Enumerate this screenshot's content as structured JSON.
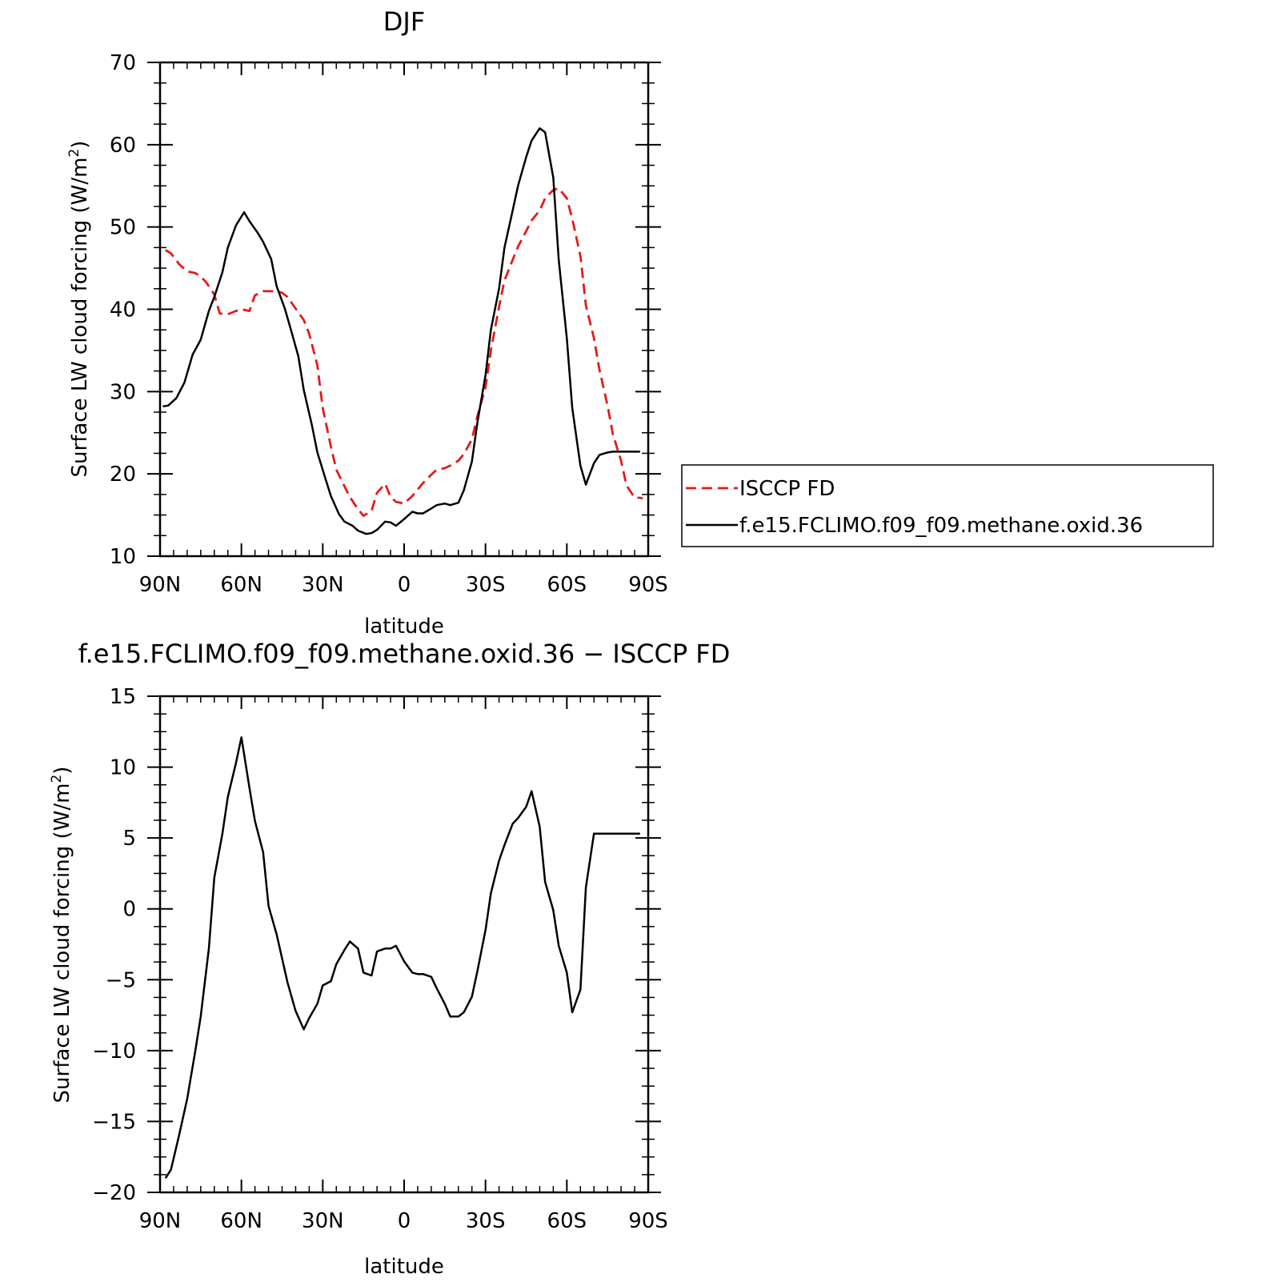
{
  "chart_data": [
    {
      "type": "line",
      "title": "DJF",
      "xlabel": "latitude",
      "ylabel": "Surface LW cloud forcing (W/m",
      "ylabel_sup": "2",
      "ylabel_close": ")",
      "xlim": [
        90,
        -90
      ],
      "ylim": [
        10,
        70
      ],
      "xticks": [
        90,
        60,
        30,
        0,
        -30,
        -60,
        -90
      ],
      "xtick_labels": [
        "90N",
        "60N",
        "30N",
        "0",
        "30S",
        "60S",
        "90S"
      ],
      "yticks": [
        10,
        20,
        30,
        40,
        50,
        60,
        70
      ],
      "ytick_labels": [
        "10",
        "20",
        "30",
        "40",
        "50",
        "60",
        "70"
      ],
      "grid": false,
      "legend_position": "right",
      "series": [
        {
          "name": "ISCCP FD",
          "color": "#e41a1c",
          "dash": "dashed",
          "x": [
            88,
            86,
            83,
            80,
            77,
            75,
            73,
            70,
            68,
            65,
            62,
            60,
            57,
            55,
            52,
            50,
            47,
            45,
            43,
            40,
            37,
            35,
            32,
            30,
            27,
            25,
            22,
            20,
            17,
            15,
            12,
            10,
            7,
            5,
            3,
            0,
            -3,
            -5,
            -7,
            -10,
            -12,
            -15,
            -17,
            -20,
            -22,
            -25,
            -27,
            -30,
            -32,
            -35,
            -37,
            -40,
            -42,
            -45,
            -47,
            -50,
            -52,
            -55,
            -57,
            -60,
            -62,
            -65,
            -67,
            -70,
            -72,
            -75,
            -77,
            -80,
            -82,
            -85,
            -87,
            -88
          ],
          "y": [
            47.2,
            46.8,
            45.5,
            44.6,
            44.4,
            44.0,
            43.3,
            41.8,
            39.5,
            39.4,
            39.8,
            40.0,
            39.8,
            41.7,
            42.2,
            42.2,
            42.2,
            42.0,
            41.5,
            40.1,
            38.7,
            37.0,
            33.2,
            28.0,
            23.3,
            20.5,
            18.5,
            17.2,
            15.7,
            14.9,
            15.5,
            17.7,
            18.8,
            17.2,
            16.6,
            16.4,
            17.3,
            18.1,
            18.9,
            19.9,
            20.5,
            20.7,
            21.0,
            21.6,
            22.4,
            24.2,
            27.0,
            30.5,
            35.0,
            40.3,
            43.5,
            46.0,
            47.6,
            49.5,
            50.8,
            52.0,
            53.5,
            54.5,
            54.7,
            53.5,
            51.0,
            46.5,
            40.5,
            36.5,
            32.7,
            28.3,
            24.8,
            21.6,
            18.6,
            17.1,
            17.1,
            17.0
          ]
        },
        {
          "name": "f.e15.FCLIMO.f09_f09.methane.oxid.36",
          "color": "#000000",
          "dash": "solid",
          "x": [
            89,
            87,
            84,
            81,
            78,
            75,
            72,
            70,
            67,
            65,
            62,
            59,
            57,
            54,
            52,
            49,
            47,
            44,
            42,
            39,
            37,
            34,
            32,
            29,
            27,
            24,
            22,
            19,
            17,
            14,
            12,
            10,
            7,
            5,
            3,
            0,
            -3,
            -5,
            -7,
            -10,
            -12,
            -15,
            -17,
            -20,
            -22,
            -25,
            -27,
            -30,
            -32,
            -35,
            -37,
            -40,
            -42,
            -45,
            -47,
            -50,
            -52,
            -55,
            -57,
            -60,
            -62,
            -65,
            -67,
            -70,
            -72,
            -75,
            -77,
            -80,
            -82,
            -85,
            -87
          ],
          "y": [
            28.2,
            28.3,
            29.2,
            31.1,
            34.5,
            36.3,
            39.8,
            41.5,
            44.5,
            47.5,
            50.2,
            51.8,
            50.7,
            49.3,
            48.2,
            46.1,
            42.8,
            40.1,
            37.8,
            34.3,
            30.2,
            25.9,
            22.6,
            19.4,
            17.3,
            15.1,
            14.2,
            13.7,
            13.1,
            12.7,
            12.8,
            13.2,
            14.2,
            14.1,
            13.7,
            14.5,
            15.4,
            15.2,
            15.2,
            15.8,
            16.2,
            16.4,
            16.2,
            16.5,
            18.0,
            21.5,
            26.2,
            32.0,
            37.5,
            42.5,
            47.5,
            52.0,
            55.0,
            58.5,
            60.5,
            62.0,
            61.5,
            56.0,
            46.0,
            36.5,
            28.0,
            21.0,
            18.7,
            21.3,
            22.3,
            22.6,
            22.7,
            22.7,
            22.7,
            22.7,
            22.7
          ]
        }
      ]
    },
    {
      "type": "line",
      "title": "f.e15.FCLIMO.f09_f09.methane.oxid.36 − ISCCP FD",
      "xlabel": "latitude",
      "ylabel": "Surface LW cloud forcing (W/m",
      "ylabel_sup": "2",
      "ylabel_close": ")",
      "xlim": [
        90,
        -90
      ],
      "ylim": [
        -20,
        15
      ],
      "xticks": [
        90,
        60,
        30,
        0,
        -30,
        -60,
        -90
      ],
      "xtick_labels": [
        "90N",
        "60N",
        "30N",
        "0",
        "30S",
        "60S",
        "90S"
      ],
      "yticks": [
        -20,
        -15,
        -10,
        -5,
        0,
        5,
        10,
        15
      ],
      "ytick_labels": [
        "−20",
        "−15",
        "−10",
        "−5",
        "0",
        "5",
        "10",
        "15"
      ],
      "grid": false,
      "series": [
        {
          "color": "#000000",
          "dash": "solid",
          "x": [
            88,
            86,
            83,
            80,
            77,
            75,
            72,
            70,
            67,
            65,
            62,
            60,
            57,
            55,
            52,
            50,
            47,
            45,
            43,
            40,
            37,
            35,
            32,
            30,
            27,
            25,
            22,
            20,
            17,
            15,
            12,
            10,
            7,
            5,
            3,
            0,
            -3,
            -5,
            -7,
            -10,
            -12,
            -15,
            -17,
            -20,
            -22,
            -25,
            -27,
            -30,
            -32,
            -35,
            -37,
            -40,
            -42,
            -45,
            -47,
            -50,
            -52,
            -55,
            -57,
            -60,
            -62,
            -65,
            -67,
            -70,
            -72,
            -75,
            -77,
            -80,
            -82,
            -85,
            -87
          ],
          "y": [
            -19.0,
            -18.4,
            -16.0,
            -13.4,
            -10.0,
            -7.6,
            -2.8,
            2.2,
            5.3,
            7.9,
            10.3,
            12.1,
            8.5,
            6.2,
            4.0,
            0.2,
            -1.8,
            -3.5,
            -5.2,
            -7.2,
            -8.5,
            -7.7,
            -6.7,
            -5.4,
            -5.1,
            -3.9,
            -2.9,
            -2.3,
            -2.8,
            -4.5,
            -4.7,
            -3.0,
            -2.8,
            -2.8,
            -2.6,
            -3.7,
            -4.5,
            -4.6,
            -4.6,
            -4.8,
            -5.6,
            -6.7,
            -7.6,
            -7.6,
            -7.3,
            -6.2,
            -4.4,
            -1.5,
            1.1,
            3.4,
            4.5,
            6.0,
            6.4,
            7.2,
            8.3,
            5.8,
            1.9,
            -0.1,
            -2.6,
            -4.5,
            -7.3,
            -5.7,
            1.5,
            5.3,
            5.3,
            5.3,
            5.3,
            5.3,
            5.3,
            5.3,
            5.3
          ]
        }
      ]
    }
  ]
}
